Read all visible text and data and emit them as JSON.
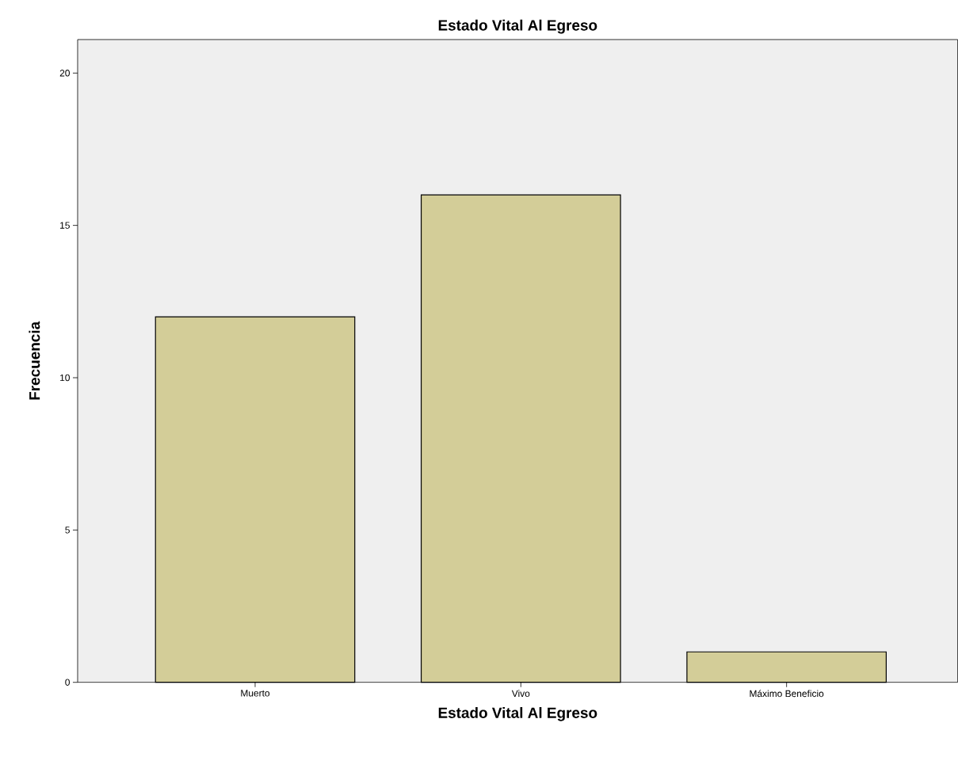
{
  "chart_data": {
    "type": "bar",
    "title": "Estado Vital Al Egreso",
    "xlabel": "Estado Vital Al Egreso",
    "ylabel": "Frecuencia",
    "categories": [
      "Muerto",
      "Vivo",
      "Máximo Beneficio"
    ],
    "values": [
      12,
      16,
      1
    ],
    "color": "#d3cd98",
    "ylim": [
      0,
      21.1
    ],
    "yticks": [
      0,
      5,
      10,
      15,
      20
    ]
  }
}
